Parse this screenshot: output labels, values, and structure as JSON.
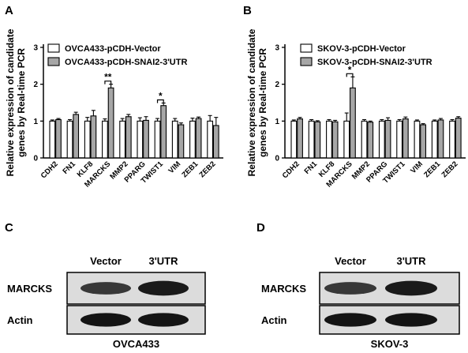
{
  "chart_data": [
    {
      "panel": "A",
      "type": "bar",
      "ylabel": "Relative expression of candidate genes by Real-time PCR",
      "ylim": [
        0,
        3
      ],
      "yticks": [
        "0",
        "1",
        "2",
        "3"
      ],
      "categories": [
        "CDH2",
        "FN1",
        "KLF8",
        "MARCKS",
        "MMP2",
        "PPARG",
        "TWIST1",
        "VIM",
        "ZEB1",
        "ZEB2"
      ],
      "series": [
        {
          "name": "OVCA433-pCDH-Vector",
          "color": "#ffffff",
          "values": [
            1.0,
            1.0,
            1.0,
            1.0,
            1.0,
            1.0,
            1.0,
            1.0,
            1.0,
            1.0
          ],
          "errors": [
            0.03,
            0.04,
            0.1,
            0.06,
            0.07,
            0.09,
            0.07,
            0.07,
            0.08,
            0.15
          ]
        },
        {
          "name": "OVCA433-pCDH-SNAI2-3'UTR",
          "color": "#a6a6a6",
          "values": [
            1.04,
            1.18,
            1.14,
            1.9,
            1.12,
            1.02,
            1.42,
            0.9,
            1.07,
            0.88
          ],
          "errors": [
            0.03,
            0.06,
            0.15,
            0.1,
            0.06,
            0.1,
            0.07,
            0.05,
            0.04,
            0.22
          ]
        }
      ],
      "significance": [
        {
          "category": "MARCKS",
          "label": "**"
        },
        {
          "category": "TWIST1",
          "label": "*"
        }
      ]
    },
    {
      "panel": "B",
      "type": "bar",
      "ylabel": "Relative expression of candidate genes by Real-time PCR",
      "ylim": [
        0,
        3
      ],
      "yticks": [
        "0",
        "1",
        "2",
        "3"
      ],
      "categories": [
        "CDH2",
        "FN1",
        "KLF8",
        "MARCKS",
        "MMP2",
        "PPARG",
        "TWIST1",
        "VIM",
        "ZEB1",
        "ZEB2"
      ],
      "series": [
        {
          "name": "SKOV-3-pCDH-Vector",
          "color": "#ffffff",
          "values": [
            1.0,
            1.0,
            1.0,
            1.0,
            1.0,
            1.0,
            1.0,
            1.0,
            1.0,
            1.0
          ],
          "errors": [
            0.03,
            0.04,
            0.04,
            0.22,
            0.04,
            0.04,
            0.04,
            0.03,
            0.03,
            0.04
          ]
        },
        {
          "name": "SKOV-3-pCDH-SNAI2-3'UTR",
          "color": "#a6a6a6",
          "values": [
            1.06,
            0.98,
            0.98,
            1.9,
            0.97,
            1.02,
            1.06,
            0.9,
            1.03,
            1.08
          ],
          "errors": [
            0.04,
            0.03,
            0.04,
            0.3,
            0.03,
            0.07,
            0.05,
            0.03,
            0.04,
            0.04
          ]
        }
      ],
      "significance": [
        {
          "category": "MARCKS",
          "label": "*"
        }
      ]
    }
  ],
  "blots": [
    {
      "panel": "C",
      "columns": [
        "Vector",
        "3'UTR"
      ],
      "rows": [
        "MARCKS",
        "Actin"
      ],
      "cell_line": "OVCA433",
      "bands": {
        "MARCKS": [
          0.6,
          0.95
        ],
        "Actin": [
          1.0,
          1.0
        ]
      }
    },
    {
      "panel": "D",
      "columns": [
        "Vector",
        "3'UTR"
      ],
      "rows": [
        "MARCKS",
        "Actin"
      ],
      "cell_line": "SKOV-3",
      "bands": {
        "MARCKS": [
          0.6,
          0.95
        ],
        "Actin": [
          1.0,
          1.0
        ]
      }
    }
  ],
  "colors": {
    "vector_fill": "#ffffff",
    "utr_fill": "#a6a6a6",
    "axis": "#000000",
    "blot_bg": "#dcdcdc",
    "band": "#141414"
  }
}
